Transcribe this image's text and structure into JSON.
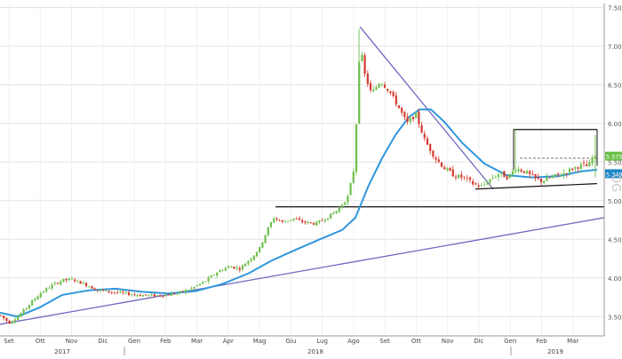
{
  "chart_data": {
    "type": "candlestick",
    "grid": true,
    "y_axis_position": "right",
    "ylim": [
      3.25,
      7.55
    ],
    "y_ticks": [
      7.5,
      7.0,
      6.5,
      6.0,
      5.5,
      5.0,
      4.5,
      4.0,
      3.5
    ],
    "y_tick_labels": [
      "7.5000",
      "7.0000",
      "6.5000",
      "6.0000",
      "5.5000",
      "5.0000",
      "4.5000",
      "4.0000",
      "3.5000"
    ],
    "x_tick_labels": [
      "Set",
      "Ott",
      "Nov",
      "Dic",
      "Gen",
      "Feb",
      "Mar",
      "Apr",
      "Mag",
      "Giu",
      "Lug",
      "Ago",
      "Set",
      "Ott",
      "Nov",
      "Dic",
      "Gen",
      "Feb",
      "Mar"
    ],
    "year_labels": [
      "2017",
      "2018",
      "2019"
    ],
    "price_markers": [
      {
        "value": 5.5758,
        "label": "5.5758",
        "color": "#6cc04a"
      },
      {
        "value": 5.349,
        "label": "5.3490",
        "color": "#1e88c8"
      }
    ],
    "watermark": "OG",
    "colors": {
      "up": "#6cc04a",
      "down": "#d63a2f",
      "moving_average": "#2f97dc",
      "trendline": "#6f68c0",
      "level": "#111111"
    },
    "price_path": [
      [
        0,
        3.52
      ],
      [
        10,
        3.42
      ],
      [
        22,
        3.52
      ],
      [
        35,
        3.68
      ],
      [
        45,
        3.8
      ],
      [
        58,
        3.9
      ],
      [
        70,
        3.97
      ],
      [
        82,
        3.98
      ],
      [
        95,
        3.92
      ],
      [
        110,
        3.84
      ],
      [
        125,
        3.82
      ],
      [
        140,
        3.8
      ],
      [
        155,
        3.78
      ],
      [
        170,
        3.77
      ],
      [
        185,
        3.78
      ],
      [
        200,
        3.8
      ],
      [
        215,
        3.86
      ],
      [
        230,
        3.95
      ],
      [
        245,
        4.08
      ],
      [
        258,
        4.15
      ],
      [
        270,
        4.12
      ],
      [
        282,
        4.25
      ],
      [
        292,
        4.38
      ],
      [
        300,
        4.6
      ],
      [
        308,
        4.78
      ],
      [
        318,
        4.72
      ],
      [
        330,
        4.77
      ],
      [
        342,
        4.72
      ],
      [
        355,
        4.7
      ],
      [
        368,
        4.78
      ],
      [
        380,
        4.88
      ],
      [
        392,
        5.05
      ],
      [
        398,
        5.4
      ],
      [
        402,
        6.2
      ],
      [
        405,
        7.05
      ],
      [
        410,
        6.65
      ],
      [
        418,
        6.38
      ],
      [
        428,
        6.55
      ],
      [
        438,
        6.42
      ],
      [
        448,
        6.22
      ],
      [
        458,
        6.0
      ],
      [
        468,
        6.12
      ],
      [
        478,
        5.78
      ],
      [
        490,
        5.55
      ],
      [
        500,
        5.42
      ],
      [
        512,
        5.32
      ],
      [
        522,
        5.3
      ],
      [
        532,
        5.22
      ],
      [
        542,
        5.18
      ],
      [
        552,
        5.28
      ],
      [
        562,
        5.35
      ],
      [
        572,
        5.3
      ],
      [
        580,
        5.42
      ],
      [
        590,
        5.38
      ],
      [
        600,
        5.3
      ],
      [
        610,
        5.25
      ],
      [
        620,
        5.3
      ],
      [
        632,
        5.34
      ],
      [
        645,
        5.42
      ],
      [
        655,
        5.46
      ],
      [
        662,
        5.44
      ],
      [
        668,
        5.58
      ],
      [
        672,
        5.52
      ]
    ],
    "moving_average": [
      [
        0,
        3.55
      ],
      [
        20,
        3.5
      ],
      [
        45,
        3.62
      ],
      [
        70,
        3.78
      ],
      [
        100,
        3.84
      ],
      [
        130,
        3.86
      ],
      [
        160,
        3.82
      ],
      [
        190,
        3.8
      ],
      [
        220,
        3.83
      ],
      [
        250,
        3.92
      ],
      [
        280,
        4.06
      ],
      [
        305,
        4.22
      ],
      [
        330,
        4.35
      ],
      [
        360,
        4.5
      ],
      [
        385,
        4.62
      ],
      [
        400,
        4.78
      ],
      [
        415,
        5.2
      ],
      [
        430,
        5.55
      ],
      [
        445,
        5.85
      ],
      [
        460,
        6.08
      ],
      [
        472,
        6.18
      ],
      [
        485,
        6.18
      ],
      [
        500,
        6.02
      ],
      [
        520,
        5.75
      ],
      [
        545,
        5.48
      ],
      [
        570,
        5.33
      ],
      [
        600,
        5.3
      ],
      [
        630,
        5.32
      ],
      [
        655,
        5.38
      ],
      [
        672,
        5.4
      ]
    ],
    "trend_lines": [
      {
        "from": [
          0,
          3.4
        ],
        "to": [
          680,
          4.78
        ]
      },
      {
        "from": [
          405,
          7.25
        ],
        "to": [
          555,
          5.15
        ]
      }
    ],
    "horizontal_levels": [
      {
        "from": 310,
        "to": 680,
        "value": 4.92
      },
      {
        "from": 578,
        "to": 672,
        "value": 5.92
      },
      {
        "from": 585,
        "to": 672,
        "value": 5.55,
        "dashed": true
      }
    ],
    "support_line": {
      "from": [
        535,
        5.15
      ],
      "to": [
        672,
        5.22
      ]
    }
  }
}
